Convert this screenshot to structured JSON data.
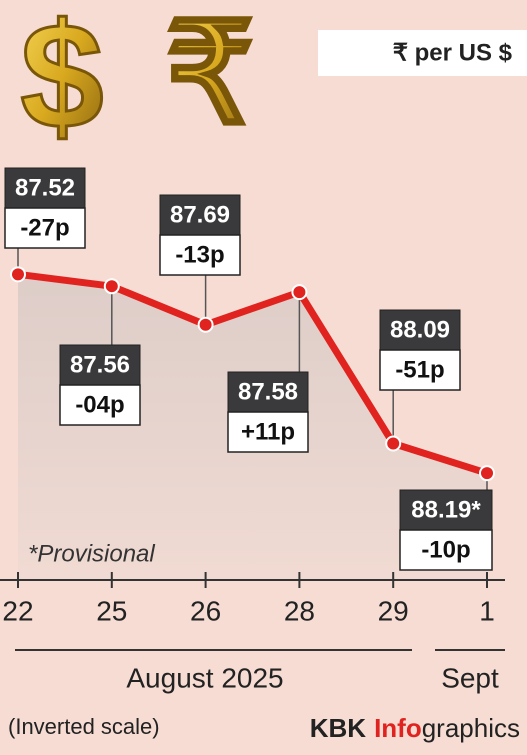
{
  "chart_data": {
    "type": "line",
    "unit_label": "₹ per US $",
    "categories": [
      "22",
      "25",
      "26",
      "28",
      "29",
      "1"
    ],
    "values": [
      87.52,
      87.56,
      87.69,
      87.58,
      88.09,
      88.19
    ],
    "value_labels": [
      "87.52",
      "87.56",
      "87.69",
      "87.58",
      "88.09",
      "88.19*"
    ],
    "change_labels": [
      "-27p",
      "-04p",
      "-13p",
      "+11p",
      "-51p",
      "-10p"
    ],
    "ylim": [
      87.0,
      88.55
    ],
    "y_inverted": true,
    "color": "#e0231f",
    "note": "*Provisional",
    "months": [
      "August 2025",
      "Sept"
    ],
    "scale_note": "(Inverted scale)",
    "credit": [
      "KBK",
      "Info",
      "graphics"
    ]
  }
}
